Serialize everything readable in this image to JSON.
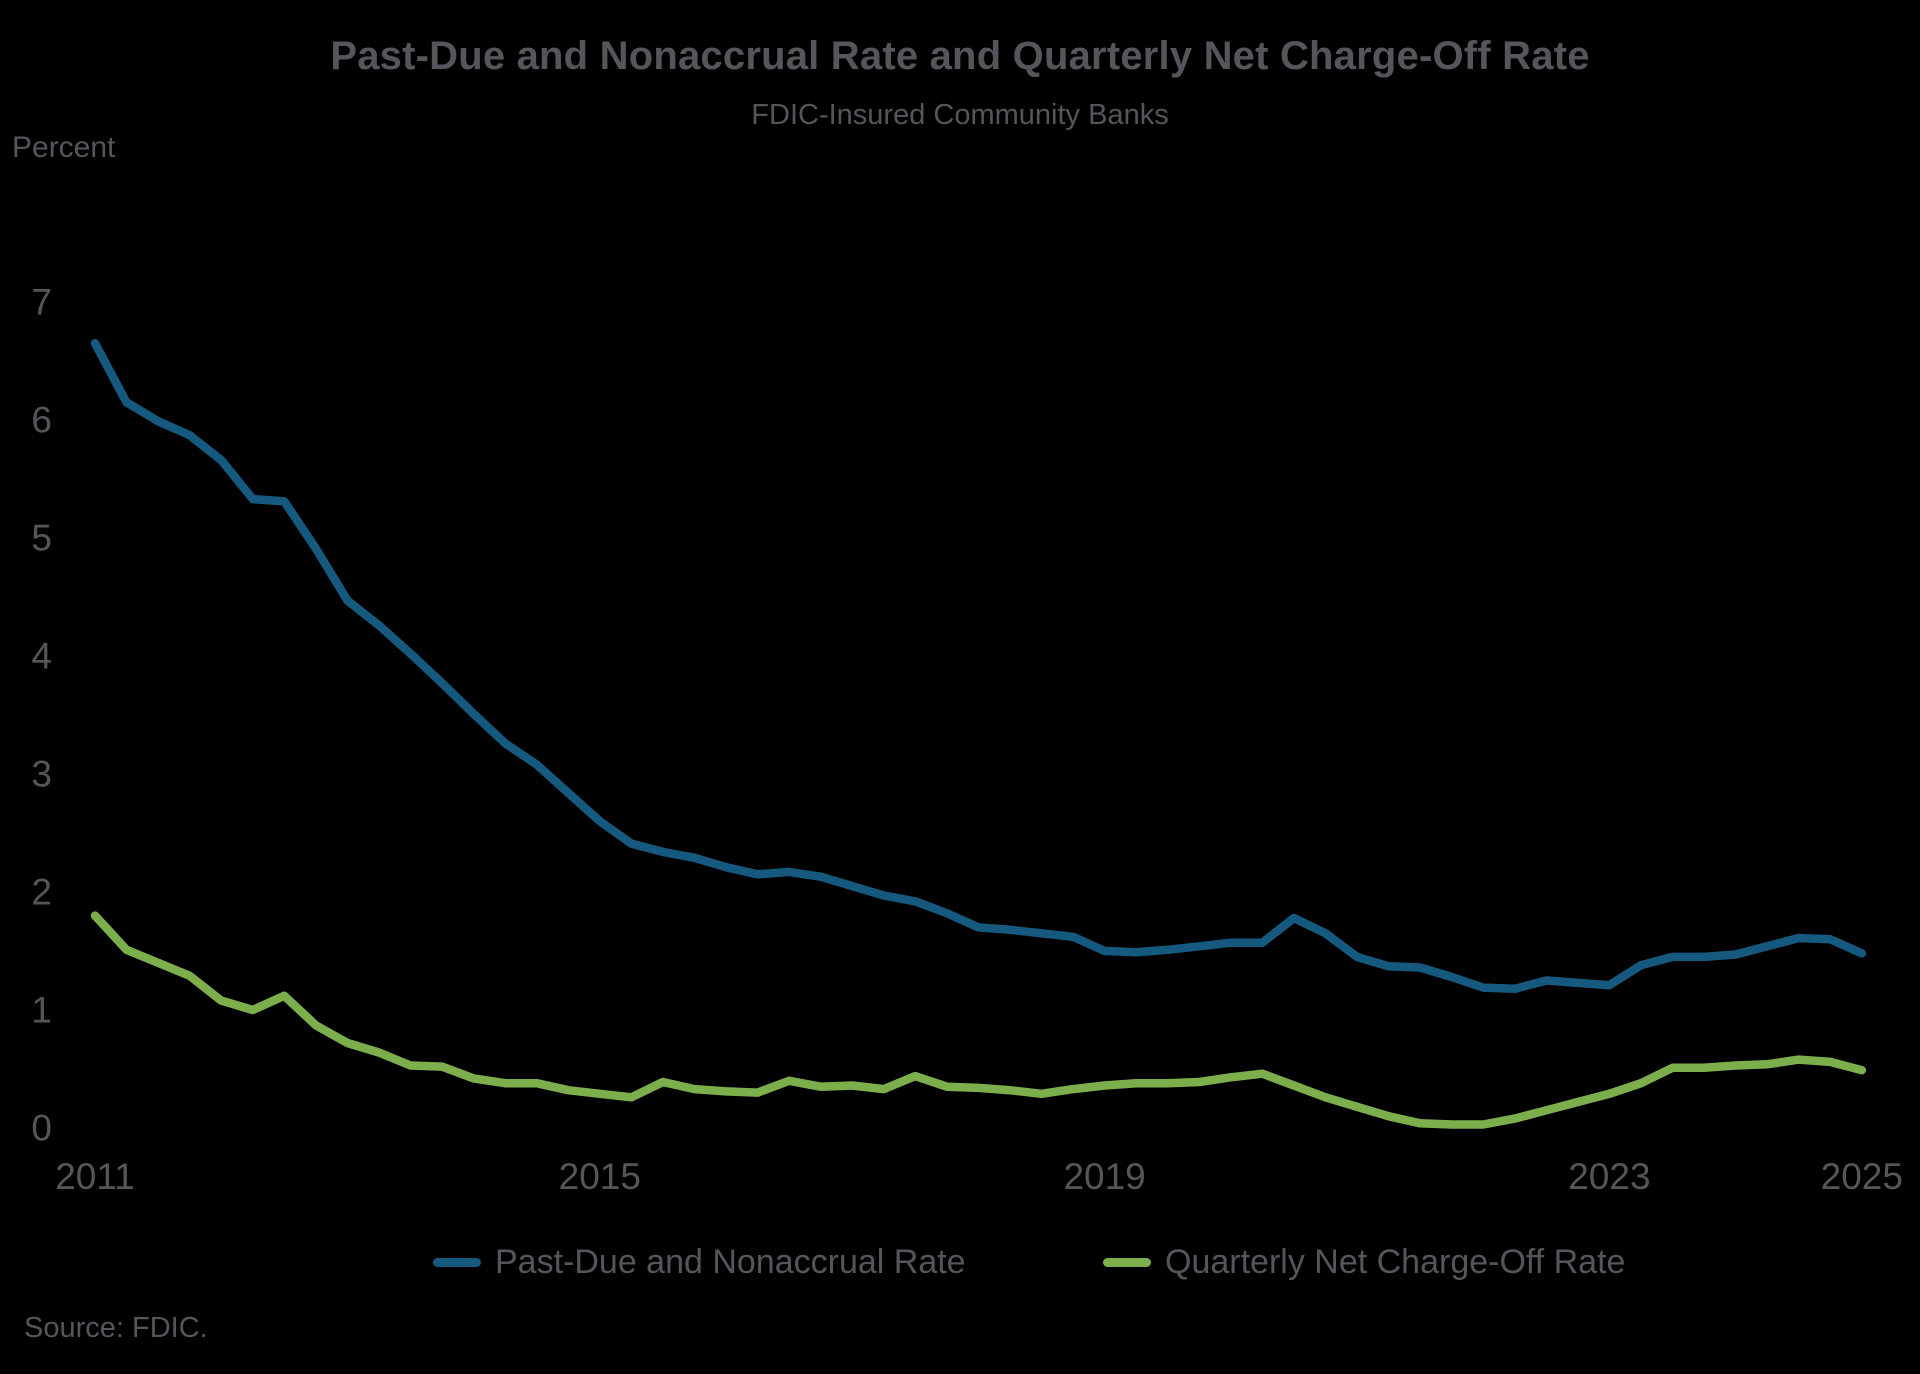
{
  "title": "Past-Due and Nonaccrual Rate and Quarterly Net Charge-Off Rate",
  "subtitle": "FDIC-Insured Community Banks",
  "source": "Source: FDIC.",
  "colors": {
    "background": "#000000",
    "text": "#55565B",
    "pdna_line": "#15597E",
    "nco_line": "#7CAF4C"
  },
  "chart_data": {
    "type": "line",
    "title": "Past-Due and Nonaccrual Rate and Quarterly Net Charge-Off Rate",
    "subtitle": "FDIC-Insured Community Banks",
    "xlabel": "",
    "ylabel": "Percent",
    "grid": false,
    "legend_position": "bottom",
    "x_start": 2011,
    "x_step": 0.25,
    "x_ticks": [
      2011,
      2015,
      2019,
      2023,
      2025
    ],
    "y_ticks": [
      0,
      1,
      2,
      3,
      4,
      5,
      6,
      7
    ],
    "ylim": [
      0,
      7.5
    ],
    "series": [
      {
        "name": "Past-Due and Nonaccrual Rate",
        "color": "#15597E",
        "values": [
          6.65,
          6.15,
          5.99,
          5.87,
          5.66,
          5.33,
          5.31,
          4.91,
          4.47,
          4.26,
          4.02,
          3.77,
          3.51,
          3.26,
          3.08,
          2.84,
          2.6,
          2.41,
          2.34,
          2.29,
          2.21,
          2.15,
          2.17,
          2.13,
          2.05,
          1.97,
          1.92,
          1.82,
          1.7,
          1.68,
          1.65,
          1.62,
          1.5,
          1.49,
          1.51,
          1.54,
          1.57,
          1.57,
          1.78,
          1.65,
          1.45,
          1.37,
          1.36,
          1.28,
          1.19,
          1.18,
          1.25,
          1.23,
          1.21,
          1.38,
          1.45,
          1.45,
          1.47,
          1.54,
          1.61,
          1.6,
          1.48
        ]
      },
      {
        "name": "Quarterly Net Charge-Off Rate",
        "color": "#7CAF4C",
        "values": [
          1.8,
          1.51,
          1.4,
          1.29,
          1.08,
          1.0,
          1.12,
          0.87,
          0.72,
          0.64,
          0.53,
          0.52,
          0.42,
          0.38,
          0.38,
          0.32,
          0.29,
          0.26,
          0.39,
          0.33,
          0.31,
          0.3,
          0.4,
          0.35,
          0.36,
          0.33,
          0.44,
          0.35,
          0.34,
          0.32,
          0.29,
          0.33,
          0.36,
          0.38,
          0.38,
          0.39,
          0.43,
          0.46,
          0.36,
          0.26,
          0.18,
          0.1,
          0.04,
          0.03,
          0.03,
          0.08,
          0.15,
          0.22,
          0.29,
          0.38,
          0.51,
          0.51,
          0.53,
          0.54,
          0.58,
          0.56,
          0.49
        ]
      }
    ]
  }
}
